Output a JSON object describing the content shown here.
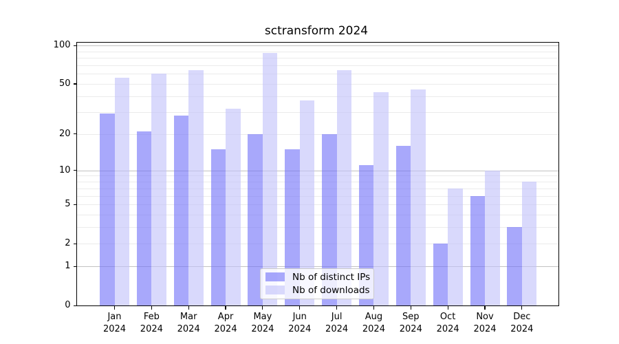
{
  "title": "sctransform 2024",
  "chart_data": {
    "type": "bar",
    "title": "sctransform 2024",
    "categories": [
      "Jan",
      "Feb",
      "Mar",
      "Apr",
      "May",
      "Jun",
      "Jul",
      "Aug",
      "Sep",
      "Oct",
      "Nov",
      "Dec"
    ],
    "tick_year": "2024",
    "series": [
      {
        "name": "Nb of distinct IPs",
        "color": "rgba(110,110,248,0.6)",
        "values": [
          29,
          21,
          28,
          15,
          20,
          15,
          20,
          11,
          16,
          2,
          6,
          3
        ]
      },
      {
        "name": "Nb of downloads",
        "color": "rgba(192,192,250,0.6)",
        "values": [
          56,
          60,
          64,
          32,
          87,
          37,
          64,
          43,
          45,
          7,
          10,
          8
        ]
      }
    ],
    "xlabel": "",
    "ylabel": "",
    "yscale": "log1p",
    "ylim": [
      0,
      105
    ],
    "yticks": [
      0,
      1,
      2,
      5,
      10,
      20,
      50,
      100
    ],
    "grid": "horizontal",
    "grid_major_at": [
      1,
      10,
      100
    ],
    "grid_minor_at": [
      2,
      3,
      4,
      5,
      6,
      7,
      8,
      9,
      20,
      30,
      40,
      50,
      60,
      70,
      80,
      90
    ],
    "legend_position": "lower center"
  },
  "colors": {
    "grid_major": "#c2c2c2",
    "grid_minor": "#ebebeb",
    "axis": "#000000",
    "background": "#ffffff"
  }
}
